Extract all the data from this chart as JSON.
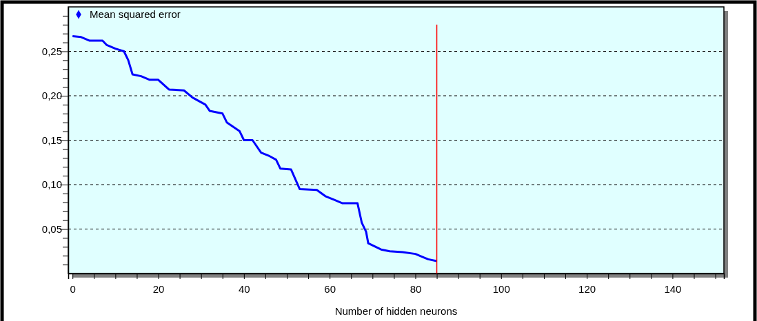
{
  "chart_data": {
    "type": "line",
    "xlabel": "Number of hidden neurons",
    "xlim": [
      -1,
      152
    ],
    "ylim": [
      0,
      0.3
    ],
    "xticks": [
      0,
      {
        "value": 5,
        "label": null
      },
      {
        "value": 10,
        "label": null
      },
      {
        "value": 15,
        "label": null
      },
      20,
      {
        "value": 25,
        "label": null
      },
      {
        "value": 30,
        "label": null
      },
      {
        "value": 35,
        "label": null
      },
      40,
      {
        "value": 45,
        "label": null
      },
      {
        "value": 50,
        "label": null
      },
      {
        "value": 55,
        "label": null
      },
      60,
      {
        "value": 65,
        "label": null
      },
      {
        "value": 70,
        "label": null
      },
      {
        "value": 75,
        "label": null
      },
      80,
      {
        "value": 85,
        "label": null
      },
      {
        "value": 90,
        "label": null
      },
      {
        "value": 95,
        "label": null
      },
      100,
      {
        "value": 105,
        "label": null
      },
      {
        "value": 110,
        "label": null
      },
      {
        "value": 115,
        "label": null
      },
      120,
      {
        "value": 125,
        "label": null
      },
      {
        "value": 130,
        "label": null
      },
      {
        "value": 135,
        "label": null
      },
      140,
      {
        "value": 145,
        "label": null
      },
      {
        "value": 150,
        "label": null
      }
    ],
    "yticks": [
      {
        "value": 0.01,
        "label": null
      },
      {
        "value": 0.02,
        "label": null
      },
      {
        "value": 0.03,
        "label": null
      },
      {
        "value": 0.04,
        "label": null
      },
      {
        "value": 0.05,
        "label": "0,05"
      },
      {
        "value": 0.06,
        "label": null
      },
      {
        "value": 0.07,
        "label": null
      },
      {
        "value": 0.08,
        "label": null
      },
      {
        "value": 0.09,
        "label": null
      },
      {
        "value": 0.1,
        "label": "0,10"
      },
      {
        "value": 0.11,
        "label": null
      },
      {
        "value": 0.12,
        "label": null
      },
      {
        "value": 0.13,
        "label": null
      },
      {
        "value": 0.14,
        "label": null
      },
      {
        "value": 0.15,
        "label": "0,15"
      },
      {
        "value": 0.16,
        "label": null
      },
      {
        "value": 0.17,
        "label": null
      },
      {
        "value": 0.18,
        "label": null
      },
      {
        "value": 0.19,
        "label": null
      },
      {
        "value": 0.2,
        "label": "0,20"
      },
      {
        "value": 0.21,
        "label": null
      },
      {
        "value": 0.22,
        "label": null
      },
      {
        "value": 0.23,
        "label": null
      },
      {
        "value": 0.24,
        "label": null
      },
      {
        "value": 0.25,
        "label": "0,25"
      },
      {
        "value": 0.26,
        "label": null
      },
      {
        "value": 0.27,
        "label": null
      },
      {
        "value": 0.28,
        "label": null
      },
      {
        "value": 0.29,
        "label": null
      }
    ],
    "grid": "y",
    "legend": "top left",
    "series": [
      {
        "name": "Mean squared error",
        "color": "#0000ff",
        "x": [
          0,
          2,
          4,
          7,
          8,
          10,
          12,
          13,
          14,
          16,
          18,
          20,
          22.5,
          26,
          28,
          31,
          32,
          35,
          36,
          39,
          40,
          42,
          44,
          46,
          47.5,
          48.5,
          51,
          53,
          57,
          59,
          61,
          63,
          66.5,
          67.5,
          68.5,
          69,
          72,
          74,
          77,
          80,
          82,
          83,
          85
        ],
        "values": [
          0.267,
          0.266,
          0.262,
          0.262,
          0.257,
          0.253,
          0.25,
          0.24,
          0.224,
          0.222,
          0.218,
          0.218,
          0.207,
          0.206,
          0.198,
          0.19,
          0.183,
          0.18,
          0.17,
          0.16,
          0.15,
          0.15,
          0.136,
          0.132,
          0.128,
          0.118,
          0.117,
          0.095,
          0.094,
          0.087,
          0.083,
          0.079,
          0.079,
          0.057,
          0.047,
          0.034,
          0.027,
          0.025,
          0.024,
          0.022,
          0.018,
          0.016,
          0.014
        ]
      }
    ],
    "ref_lines": [
      {
        "axis": "x",
        "value": 85,
        "color": "#ff0000"
      }
    ]
  }
}
